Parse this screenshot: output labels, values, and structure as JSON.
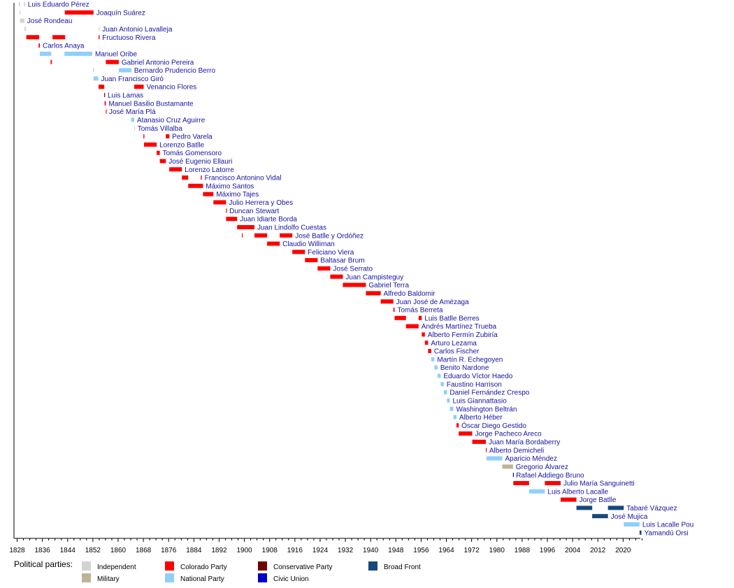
{
  "chart_data": {
    "type": "timeline",
    "xlim": [
      1828,
      2027
    ],
    "x_ticks": [
      1828,
      1836,
      1844,
      1852,
      1860,
      1868,
      1876,
      1884,
      1892,
      1900,
      1908,
      1916,
      1924,
      1932,
      1940,
      1948,
      1956,
      1964,
      1972,
      1980,
      1988,
      1996,
      2004,
      2012,
      2020
    ],
    "grid": false,
    "legend_title": "Political parties:",
    "legend_position": "bottom",
    "parties": [
      {
        "key": "independent",
        "name": "Independent",
        "color": "#d3d3d3"
      },
      {
        "key": "military",
        "name": "Military",
        "color": "#bfb397"
      },
      {
        "key": "colorado",
        "name": "Colorado Party",
        "color": "#ff0000"
      },
      {
        "key": "national",
        "name": "National Party",
        "color": "#8fd0f8"
      },
      {
        "key": "conservative",
        "name": "Conservative Party",
        "color": "#730000"
      },
      {
        "key": "civic",
        "name": "Civic Union",
        "color": "#0000c8"
      },
      {
        "key": "broad",
        "name": "Broad Front",
        "color": "#16487c"
      }
    ],
    "presidents": [
      {
        "name": "Luis Eduardo Pérez",
        "terms": [
          [
            1828.6,
            1829.0,
            "independent"
          ],
          [
            1830.1,
            1830.5,
            "independent"
          ]
        ]
      },
      {
        "name": "Joaquín Suárez",
        "terms": [
          [
            1828.8,
            1829.0,
            "independent"
          ],
          [
            1843.1,
            1852.2,
            "colorado"
          ]
        ]
      },
      {
        "name": "José Rondeau",
        "terms": [
          [
            1828.9,
            1830.3,
            "independent"
          ]
        ]
      },
      {
        "name": "Juan Antonio Lavalleja",
        "terms": [
          [
            1830.3,
            1830.8,
            "independent"
          ],
          [
            1853.8,
            1854.1,
            "independent"
          ]
        ]
      },
      {
        "name": "Fructuoso Rivera",
        "terms": [
          [
            1830.9,
            1835.0,
            "colorado"
          ],
          [
            1839.2,
            1843.2,
            "colorado"
          ],
          [
            1853.8,
            1854.1,
            "colorado"
          ]
        ]
      },
      {
        "name": "Carlos Anaya",
        "terms": [
          [
            1834.8,
            1835.2,
            "colorado"
          ]
        ]
      },
      {
        "name": "Manuel Oribe",
        "terms": [
          [
            1835.2,
            1838.8,
            "national"
          ],
          [
            1843.0,
            1851.8,
            "national"
          ]
        ]
      },
      {
        "name": "Gabriel Antonio Pereira",
        "terms": [
          [
            1838.6,
            1839.0,
            "colorado"
          ],
          [
            1856.1,
            1860.2,
            "colorado"
          ]
        ]
      },
      {
        "name": "Bernardo Prudencio Berro",
        "terms": [
          [
            1852.1,
            1852.3,
            "national"
          ],
          [
            1860.2,
            1864.2,
            "national"
          ]
        ]
      },
      {
        "name": "Juan Francisco Giró",
        "terms": [
          [
            1852.2,
            1853.7,
            "national"
          ]
        ]
      },
      {
        "name": "Venancio Flores",
        "terms": [
          [
            1853.8,
            1855.6,
            "colorado"
          ],
          [
            1865.1,
            1868.1,
            "colorado"
          ]
        ]
      },
      {
        "name": "Luis Lamas",
        "terms": [
          [
            1855.6,
            1855.8,
            "conservative"
          ]
        ]
      },
      {
        "name": "Manuel Basilio Bustamante",
        "terms": [
          [
            1855.7,
            1856.1,
            "colorado"
          ]
        ]
      },
      {
        "name": "José María Plá",
        "terms": [
          [
            1856.1,
            1856.25,
            "colorado"
          ]
        ]
      },
      {
        "name": "Atanasio Cruz Aguirre",
        "terms": [
          [
            1864.1,
            1865.1,
            "national"
          ]
        ]
      },
      {
        "name": "Tomás Villalba",
        "terms": [
          [
            1865.1,
            1865.25,
            "independent"
          ]
        ]
      },
      {
        "name": "Pedro Varela",
        "terms": [
          [
            1868.0,
            1868.3,
            "colorado"
          ],
          [
            1875.1,
            1876.2,
            "colorado"
          ]
        ]
      },
      {
        "name": "Lorenzo Batlle",
        "terms": [
          [
            1868.2,
            1872.2,
            "colorado"
          ]
        ]
      },
      {
        "name": "Tomás Gomensoro",
        "terms": [
          [
            1872.2,
            1873.2,
            "colorado"
          ]
        ]
      },
      {
        "name": "José Eugenio Ellauri",
        "terms": [
          [
            1873.2,
            1875.1,
            "colorado"
          ]
        ]
      },
      {
        "name": "Lorenzo Latorre",
        "terms": [
          [
            1876.2,
            1880.2,
            "colorado"
          ]
        ]
      },
      {
        "name": "Francisco Antonino Vidal",
        "terms": [
          [
            1880.2,
            1882.2,
            "colorado"
          ],
          [
            1886.2,
            1886.5,
            "colorado"
          ]
        ]
      },
      {
        "name": "Máximo Santos",
        "terms": [
          [
            1882.2,
            1886.9,
            "colorado"
          ]
        ]
      },
      {
        "name": "Máximo Tajes",
        "terms": [
          [
            1886.9,
            1890.2,
            "colorado"
          ]
        ]
      },
      {
        "name": "Julio Herrera y Obes",
        "terms": [
          [
            1890.2,
            1894.2,
            "colorado"
          ]
        ]
      },
      {
        "name": "Duncan Stewart",
        "terms": [
          [
            1894.2,
            1894.35,
            "colorado"
          ]
        ]
      },
      {
        "name": "Juan Idiarte Borda",
        "terms": [
          [
            1894.2,
            1897.7,
            "colorado"
          ]
        ]
      },
      {
        "name": "Juan Lindolfo Cuestas",
        "terms": [
          [
            1897.7,
            1903.2,
            "colorado"
          ]
        ]
      },
      {
        "name": "José Batlle y Ordóñez",
        "terms": [
          [
            1899.2,
            1899.3,
            "colorado"
          ],
          [
            1903.2,
            1907.2,
            "colorado"
          ],
          [
            1911.2,
            1915.2,
            "colorado"
          ]
        ]
      },
      {
        "name": "Claudio Williman",
        "terms": [
          [
            1907.2,
            1911.2,
            "colorado"
          ]
        ]
      },
      {
        "name": "Feliciano Viera",
        "terms": [
          [
            1915.2,
            1919.2,
            "colorado"
          ]
        ]
      },
      {
        "name": "Baltasar Brum",
        "terms": [
          [
            1919.2,
            1923.2,
            "colorado"
          ]
        ]
      },
      {
        "name": "José Serrato",
        "terms": [
          [
            1923.2,
            1927.2,
            "colorado"
          ]
        ]
      },
      {
        "name": "Juan Campisteguy",
        "terms": [
          [
            1927.2,
            1931.2,
            "colorado"
          ]
        ]
      },
      {
        "name": "Gabriel Terra",
        "terms": [
          [
            1931.2,
            1938.5,
            "colorado"
          ]
        ]
      },
      {
        "name": "Alfredo Baldomir",
        "terms": [
          [
            1938.5,
            1943.2,
            "colorado"
          ]
        ]
      },
      {
        "name": "Juan José de Amézaga",
        "terms": [
          [
            1943.2,
            1947.2,
            "colorado"
          ]
        ]
      },
      {
        "name": "Tomás Berreta",
        "terms": [
          [
            1947.2,
            1947.6,
            "colorado"
          ]
        ]
      },
      {
        "name": "Luis Batlle Berres",
        "terms": [
          [
            1947.6,
            1951.2,
            "colorado"
          ],
          [
            1955.2,
            1956.2,
            "colorado"
          ]
        ]
      },
      {
        "name": "Andrés Martínez Trueba",
        "terms": [
          [
            1951.2,
            1955.2,
            "colorado"
          ]
        ]
      },
      {
        "name": "Alberto Fermín Zubiría",
        "terms": [
          [
            1956.2,
            1957.2,
            "colorado"
          ]
        ]
      },
      {
        "name": "Arturo Lezama",
        "terms": [
          [
            1957.2,
            1958.2,
            "colorado"
          ]
        ]
      },
      {
        "name": "Carlos Fischer",
        "terms": [
          [
            1958.2,
            1959.2,
            "colorado"
          ]
        ]
      },
      {
        "name": "Martín R. Echegoyen",
        "terms": [
          [
            1959.2,
            1960.2,
            "national"
          ]
        ]
      },
      {
        "name": "Benito Nardone",
        "terms": [
          [
            1960.2,
            1961.2,
            "national"
          ]
        ]
      },
      {
        "name": "Eduardo Víctor Haedo",
        "terms": [
          [
            1961.2,
            1962.2,
            "national"
          ]
        ]
      },
      {
        "name": "Faustino Harrison",
        "terms": [
          [
            1962.2,
            1963.2,
            "national"
          ]
        ]
      },
      {
        "name": "Daniel Fernández Crespo",
        "terms": [
          [
            1963.2,
            1964.2,
            "national"
          ]
        ]
      },
      {
        "name": "Luis Giannattasio",
        "terms": [
          [
            1964.2,
            1965.1,
            "national"
          ]
        ]
      },
      {
        "name": "Washington Beltrán",
        "terms": [
          [
            1965.1,
            1966.2,
            "national"
          ]
        ]
      },
      {
        "name": "Alberto Héber",
        "terms": [
          [
            1966.2,
            1967.2,
            "national"
          ]
        ]
      },
      {
        "name": "Óscar Diego Gestido",
        "terms": [
          [
            1967.2,
            1967.9,
            "colorado"
          ]
        ]
      },
      {
        "name": "Jorge Pacheco Areco",
        "terms": [
          [
            1967.9,
            1972.2,
            "colorado"
          ]
        ]
      },
      {
        "name": "Juan María Bordaberry",
        "terms": [
          [
            1972.2,
            1976.5,
            "colorado"
          ]
        ]
      },
      {
        "name": "Alberto Demicheli",
        "terms": [
          [
            1976.5,
            1976.7,
            "colorado"
          ]
        ]
      },
      {
        "name": "Aparicio Méndez",
        "terms": [
          [
            1976.7,
            1981.7,
            "national"
          ]
        ]
      },
      {
        "name": "Gregorio Álvarez",
        "terms": [
          [
            1981.7,
            1985.1,
            "military"
          ]
        ]
      },
      {
        "name": "Rafael Addiego Bruno",
        "terms": [
          [
            1985.1,
            1985.2,
            "civic"
          ]
        ]
      },
      {
        "name": "Julio María Sanguinetti",
        "terms": [
          [
            1985.2,
            1990.2,
            "colorado"
          ],
          [
            1995.2,
            2000.2,
            "colorado"
          ]
        ]
      },
      {
        "name": "Luis Alberto Lacalle",
        "terms": [
          [
            1990.2,
            1995.2,
            "national"
          ]
        ]
      },
      {
        "name": "Jorge Batlle",
        "terms": [
          [
            2000.2,
            2005.2,
            "colorado"
          ]
        ]
      },
      {
        "name": "Tabaré Vázquez",
        "terms": [
          [
            2005.2,
            2010.2,
            "broad"
          ],
          [
            2015.2,
            2020.2,
            "broad"
          ]
        ]
      },
      {
        "name": "José Mujica",
        "terms": [
          [
            2010.2,
            2015.2,
            "broad"
          ]
        ]
      },
      {
        "name": "Luis Lacalle Pou",
        "terms": [
          [
            2020.2,
            2025.2,
            "national"
          ]
        ]
      },
      {
        "name": "Yamandú Orsi",
        "terms": [
          [
            2025.2,
            2025.8,
            "broad"
          ]
        ]
      }
    ]
  }
}
